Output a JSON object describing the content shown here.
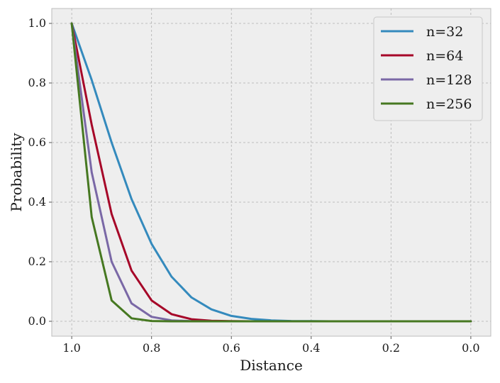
{
  "chart_data": {
    "type": "line",
    "xlabel": "Distance",
    "ylabel": "Probability",
    "xlim": [
      1.05,
      -0.05
    ],
    "ylim": [
      -0.05,
      1.05
    ],
    "x_reversed": true,
    "xticks": [
      1.0,
      0.8,
      0.6,
      0.4,
      0.2,
      0.0
    ],
    "xtick_labels": [
      "1.0",
      "0.8",
      "0.6",
      "0.4",
      "0.2",
      "0.0"
    ],
    "yticks": [
      0.0,
      0.2,
      0.4,
      0.6,
      0.8,
      1.0
    ],
    "ytick_labels": [
      "0.0",
      "0.2",
      "0.4",
      "0.6",
      "0.8",
      "1.0"
    ],
    "grid": true,
    "legend_position": "top-right",
    "x": [
      1.0,
      0.95,
      0.9,
      0.85,
      0.8,
      0.75,
      0.7,
      0.65,
      0.6,
      0.55,
      0.5,
      0.45,
      0.4,
      0.35,
      0.3,
      0.25,
      0.2,
      0.15,
      0.1,
      0.05,
      0.0
    ],
    "series": [
      {
        "name": "n=32",
        "color": "#348abd",
        "values": [
          1.0,
          0.81,
          0.6,
          0.41,
          0.26,
          0.15,
          0.08,
          0.04,
          0.018,
          0.008,
          0.003,
          0.001,
          0.0004,
          0.0001,
          0.0,
          0.0,
          0.0,
          0.0,
          0.0,
          0.0,
          0.0
        ]
      },
      {
        "name": "n=64",
        "color": "#a60628",
        "values": [
          1.0,
          0.66,
          0.36,
          0.17,
          0.07,
          0.024,
          0.007,
          0.002,
          0.0005,
          0.0001,
          0.0,
          0.0,
          0.0,
          0.0,
          0.0,
          0.0,
          0.0,
          0.0,
          0.0,
          0.0,
          0.0
        ]
      },
      {
        "name": "n=128",
        "color": "#7a68a6",
        "values": [
          1.0,
          0.5,
          0.2,
          0.06,
          0.015,
          0.003,
          0.0005,
          0.0001,
          0.0,
          0.0,
          0.0,
          0.0,
          0.0,
          0.0,
          0.0,
          0.0,
          0.0,
          0.0,
          0.0,
          0.0,
          0.0
        ]
      },
      {
        "name": "n=256",
        "color": "#467821",
        "values": [
          1.0,
          0.35,
          0.07,
          0.01,
          0.001,
          0.0001,
          0.0,
          0.0,
          0.0,
          0.0,
          0.0,
          0.0,
          0.0,
          0.0,
          0.0,
          0.0,
          0.0,
          0.0,
          0.0,
          0.0,
          0.0
        ]
      }
    ]
  }
}
